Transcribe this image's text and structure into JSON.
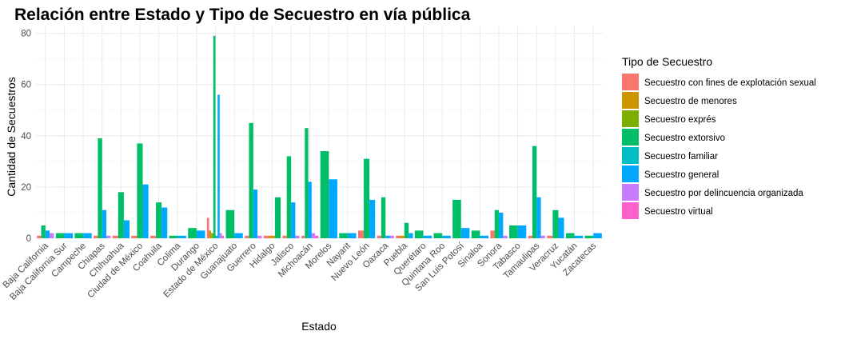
{
  "chart_data": {
    "type": "bar",
    "title": "Relación entre Estado y Tipo de Secuestro en vía pública",
    "xlabel": "Estado",
    "ylabel": "Cantidad de Secuestros",
    "ylim": [
      0,
      83
    ],
    "yticks": [
      0,
      20,
      40,
      60,
      80
    ],
    "grid": true,
    "legend_title": "Tipo de Secuestro",
    "legend_position": "right",
    "categories": [
      "Baja California",
      "Baja California Sur",
      "Campeche",
      "Chiapas",
      "Chihuahua",
      "Ciudad de México",
      "Coahuila",
      "Colima",
      "Durango",
      "Estado de México",
      "Guanajuato",
      "Guerrero",
      "Hidalgo",
      "Jalisco",
      "Michoacán",
      "Morelos",
      "Nayarit",
      "Nuevo León",
      "Oaxaca",
      "Puebla",
      "Querétaro",
      "Quintana Roo",
      "San Luis Potosí",
      "Sinaloa",
      "Sonora",
      "Tabasco",
      "Tamaulipas",
      "Veracruz",
      "Yucatán",
      "Zacatecas"
    ],
    "series": [
      {
        "name": "Secuestro con fines de explotación sexual",
        "color": "#F8766D"
      },
      {
        "name": "Secuestro de menores",
        "color": "#CD9600"
      },
      {
        "name": "Secuestro exprés",
        "color": "#7CAE00"
      },
      {
        "name": "Secuestro extorsivo",
        "color": "#00BE67"
      },
      {
        "name": "Secuestro familiar",
        "color": "#00BFC4"
      },
      {
        "name": "Secuestro general",
        "color": "#00A9FF"
      },
      {
        "name": "Secuestro por delincuencia organizada",
        "color": "#C77CFF"
      },
      {
        "name": "Secuestro virtual",
        "color": "#FF61CC"
      }
    ],
    "groups": [
      [
        [
          0,
          1
        ],
        [
          3,
          5
        ],
        [
          5,
          3
        ],
        [
          6,
          2
        ]
      ],
      [
        [
          3,
          2
        ],
        [
          5,
          2
        ]
      ],
      [
        [
          3,
          2
        ],
        [
          5,
          2
        ]
      ],
      [
        [
          0,
          1
        ],
        [
          3,
          39
        ],
        [
          5,
          11
        ],
        [
          6,
          1
        ]
      ],
      [
        [
          0,
          1
        ],
        [
          3,
          18
        ],
        [
          5,
          7
        ]
      ],
      [
        [
          0,
          1
        ],
        [
          3,
          37
        ],
        [
          5,
          21
        ]
      ],
      [
        [
          0,
          1
        ],
        [
          3,
          14
        ],
        [
          5,
          12
        ]
      ],
      [
        [
          3,
          1
        ],
        [
          5,
          1
        ]
      ],
      [
        [
          3,
          4
        ],
        [
          5,
          3
        ]
      ],
      [
        [
          0,
          8
        ],
        [
          1,
          3
        ],
        [
          2,
          2
        ],
        [
          3,
          79
        ],
        [
          4,
          1
        ],
        [
          5,
          56
        ],
        [
          6,
          2
        ],
        [
          7,
          1
        ]
      ],
      [
        [
          3,
          11
        ],
        [
          5,
          2
        ]
      ],
      [
        [
          0,
          1
        ],
        [
          3,
          45
        ],
        [
          5,
          19
        ],
        [
          6,
          1
        ]
      ],
      [
        [
          0,
          1
        ],
        [
          1,
          1
        ],
        [
          3,
          16
        ]
      ],
      [
        [
          0,
          1
        ],
        [
          3,
          32
        ],
        [
          5,
          14
        ],
        [
          6,
          1
        ]
      ],
      [
        [
          0,
          1
        ],
        [
          3,
          43
        ],
        [
          5,
          22
        ],
        [
          6,
          2
        ],
        [
          7,
          1
        ]
      ],
      [
        [
          3,
          34
        ],
        [
          5,
          23
        ]
      ],
      [
        [
          3,
          2
        ],
        [
          5,
          2
        ]
      ],
      [
        [
          0,
          3
        ],
        [
          3,
          31
        ],
        [
          5,
          15
        ]
      ],
      [
        [
          0,
          1
        ],
        [
          3,
          16
        ],
        [
          5,
          1
        ],
        [
          6,
          1
        ]
      ],
      [
        [
          0,
          1
        ],
        [
          1,
          1
        ],
        [
          3,
          6
        ],
        [
          5,
          2
        ]
      ],
      [
        [
          3,
          3
        ],
        [
          5,
          1
        ]
      ],
      [
        [
          3,
          2
        ],
        [
          5,
          1
        ]
      ],
      [
        [
          3,
          15
        ],
        [
          5,
          4
        ]
      ],
      [
        [
          3,
          3
        ],
        [
          5,
          1
        ]
      ],
      [
        [
          0,
          3
        ],
        [
          3,
          11
        ],
        [
          5,
          10
        ],
        [
          6,
          1
        ]
      ],
      [
        [
          3,
          5
        ],
        [
          5,
          5
        ]
      ],
      [
        [
          0,
          1
        ],
        [
          3,
          36
        ],
        [
          5,
          16
        ],
        [
          6,
          1
        ]
      ],
      [
        [
          0,
          1
        ],
        [
          3,
          11
        ],
        [
          5,
          8
        ]
      ],
      [
        [
          3,
          2
        ],
        [
          5,
          1
        ]
      ],
      [
        [
          3,
          1
        ],
        [
          5,
          2
        ]
      ]
    ]
  }
}
